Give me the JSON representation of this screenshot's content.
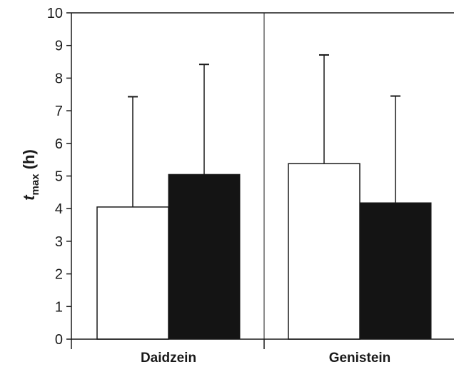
{
  "chart_data": {
    "type": "bar",
    "categories": [
      "Daidzein",
      "Genistein"
    ],
    "series": [
      {
        "values": [
          4.05,
          5.38
        ],
        "errors": [
          3.38,
          3.33
        ],
        "color": "#ffffff"
      },
      {
        "values": [
          5.05,
          4.18
        ],
        "errors": [
          3.37,
          3.27
        ],
        "color": "#141414"
      }
    ],
    "ylabel": {
      "main": "t",
      "sub": "max",
      "unit": " (h)"
    },
    "ylim": [
      0,
      10
    ],
    "yticks": [
      "0",
      "1",
      "2",
      "3",
      "4",
      "5",
      "6",
      "7",
      "8",
      "9",
      "10"
    ],
    "grid": false,
    "legend": "none"
  }
}
